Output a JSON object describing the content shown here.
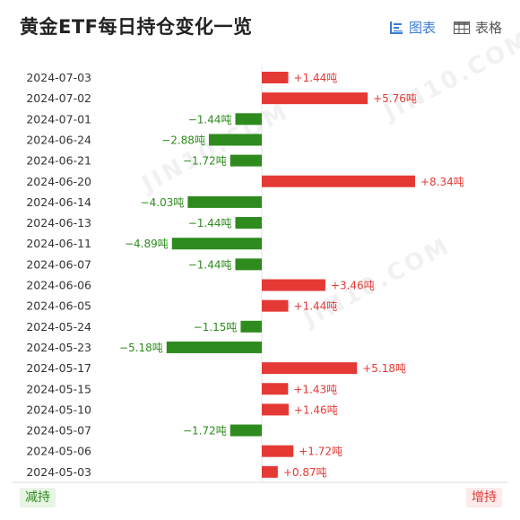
{
  "header": {
    "title": "黄金ETF每日持仓变化一览",
    "tabs": [
      {
        "label": "图表",
        "icon": "bar-chart-icon",
        "active": true
      },
      {
        "label": "表格",
        "icon": "table-icon",
        "active": false
      }
    ]
  },
  "footer": {
    "decrease_label": "减持",
    "increase_label": "增持"
  },
  "watermark_text": "JIN10.COM",
  "colors": {
    "positive": "#e53935",
    "negative": "#2e8b1e",
    "accent": "#3a7bd5"
  },
  "chart_data": {
    "type": "bar",
    "orientation": "horizontal",
    "title": "黄金ETF每日持仓变化一览",
    "unit": "吨",
    "categories": [
      "2024-07-03",
      "2024-07-02",
      "2024-07-01",
      "2024-06-24",
      "2024-06-21",
      "2024-06-20",
      "2024-06-14",
      "2024-06-13",
      "2024-06-11",
      "2024-06-07",
      "2024-06-06",
      "2024-06-05",
      "2024-05-24",
      "2024-05-23",
      "2024-05-17",
      "2024-05-15",
      "2024-05-10",
      "2024-05-07",
      "2024-05-06",
      "2024-05-03"
    ],
    "values": [
      1.44,
      5.76,
      -1.44,
      -2.88,
      -1.72,
      8.34,
      -4.03,
      -1.44,
      -4.89,
      -1.44,
      3.46,
      1.44,
      -1.15,
      -5.18,
      5.18,
      1.43,
      1.46,
      -1.72,
      1.72,
      0.87
    ],
    "data_labels": [
      "+1.44吨",
      "+5.76吨",
      "−1.44吨",
      "−2.88吨",
      "−1.72吨",
      "+8.34吨",
      "−4.03吨",
      "−1.44吨",
      "−4.89吨",
      "−1.44吨",
      "+3.46吨",
      "+1.44吨",
      "−1.15吨",
      "−5.18吨",
      "+5.18吨",
      "+1.43吨",
      "+1.46吨",
      "−1.72吨",
      "+1.72吨",
      "+0.87吨"
    ],
    "xlim": [
      -9.5,
      9.5
    ],
    "xticks": [
      -6,
      -3,
      0,
      3,
      6,
      9
    ],
    "xtick_labels": [
      "−6",
      "−3",
      "0",
      "3",
      "6",
      "9"
    ],
    "grid": false
  }
}
